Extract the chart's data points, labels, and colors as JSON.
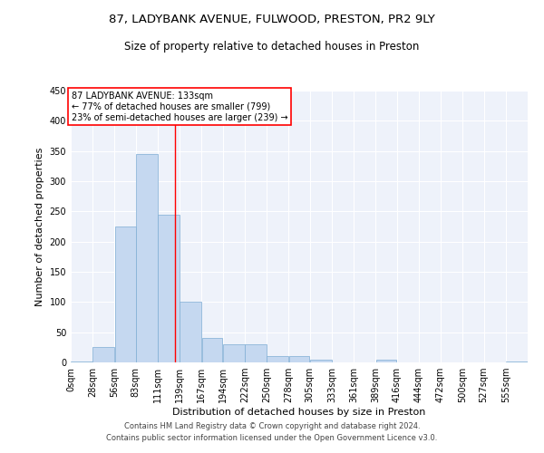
{
  "title1": "87, LADYBANK AVENUE, FULWOOD, PRESTON, PR2 9LY",
  "title2": "Size of property relative to detached houses in Preston",
  "xlabel": "Distribution of detached houses by size in Preston",
  "ylabel": "Number of detached properties",
  "bar_values": [
    2,
    25,
    225,
    345,
    245,
    100,
    40,
    30,
    30,
    10,
    10,
    5,
    0,
    0,
    5,
    0,
    0,
    0,
    0,
    0,
    2
  ],
  "bin_labels": [
    "0sqm",
    "28sqm",
    "56sqm",
    "83sqm",
    "111sqm",
    "139sqm",
    "167sqm",
    "194sqm",
    "222sqm",
    "250sqm",
    "278sqm",
    "305sqm",
    "333sqm",
    "361sqm",
    "389sqm",
    "416sqm",
    "444sqm",
    "472sqm",
    "500sqm",
    "527sqm",
    "555sqm"
  ],
  "bin_edges": [
    0,
    28,
    56,
    83,
    111,
    139,
    167,
    194,
    222,
    250,
    278,
    305,
    333,
    361,
    389,
    416,
    444,
    472,
    500,
    527,
    555,
    583
  ],
  "bar_color": "#c5d8f0",
  "bar_edge_color": "#7eadd4",
  "red_line_x": 133,
  "annotation_text": "87 LADYBANK AVENUE: 133sqm\n← 77% of detached houses are smaller (799)\n23% of semi-detached houses are larger (239) →",
  "annotation_box_color": "white",
  "annotation_box_edge": "red",
  "ylim": [
    0,
    450
  ],
  "yticks": [
    0,
    50,
    100,
    150,
    200,
    250,
    300,
    350,
    400,
    450
  ],
  "footnote1": "Contains HM Land Registry data © Crown copyright and database right 2024.",
  "footnote2": "Contains public sector information licensed under the Open Government Licence v3.0.",
  "bg_color": "#eef2fa",
  "grid_color": "white",
  "title1_fontsize": 9.5,
  "title2_fontsize": 8.5,
  "xlabel_fontsize": 8,
  "ylabel_fontsize": 8,
  "footnote_fontsize": 6,
  "tick_fontsize": 7,
  "annot_fontsize": 7
}
